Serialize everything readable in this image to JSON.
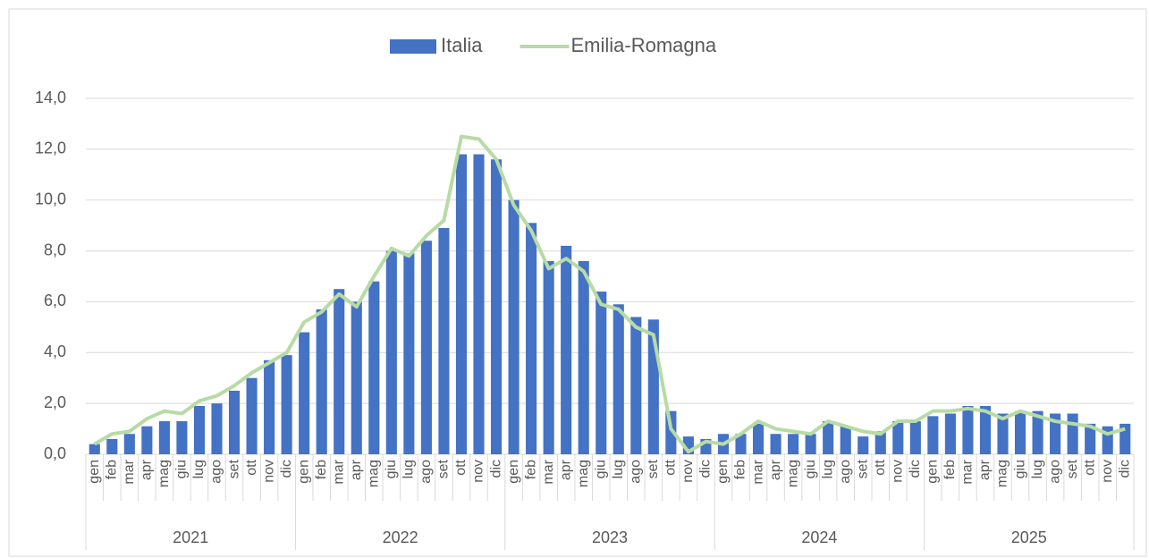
{
  "chart_data": {
    "type": "bar",
    "categories": [
      "gen",
      "feb",
      "mar",
      "apr",
      "mag",
      "giu",
      "lug",
      "ago",
      "set",
      "ott",
      "nov",
      "dic",
      "gen",
      "feb",
      "mar",
      "apr",
      "mag",
      "giu",
      "lug",
      "ago",
      "set",
      "ott",
      "nov",
      "dic",
      "gen",
      "feb",
      "mar",
      "apr",
      "mag",
      "giu",
      "lug",
      "ago",
      "set",
      "ott",
      "nov",
      "dic",
      "gen",
      "feb",
      "mar",
      "apr",
      "mag",
      "giu",
      "lug",
      "ago",
      "set",
      "ott",
      "nov",
      "dic",
      "gen",
      "feb",
      "mar",
      "apr",
      "mag",
      "giu",
      "lug",
      "ago",
      "set",
      "ott",
      "nov",
      "dic"
    ],
    "x_groups": [
      "2021",
      "2022",
      "2023",
      "2024",
      "2025"
    ],
    "series": [
      {
        "name": "Italia",
        "type": "bar",
        "color": "#4472c4",
        "values": [
          0.4,
          0.6,
          0.8,
          1.1,
          1.3,
          1.3,
          1.9,
          2.0,
          2.5,
          3.0,
          3.7,
          3.9,
          4.8,
          5.7,
          6.5,
          6.0,
          6.8,
          8.0,
          7.9,
          8.4,
          8.9,
          11.8,
          11.8,
          11.6,
          10.0,
          9.1,
          7.6,
          8.2,
          7.6,
          6.4,
          5.9,
          5.4,
          5.3,
          1.7,
          0.7,
          0.6,
          0.8,
          0.8,
          1.2,
          0.8,
          0.8,
          0.8,
          1.3,
          1.1,
          0.7,
          0.9,
          1.3,
          1.3,
          1.5,
          1.6,
          1.9,
          1.9,
          1.6,
          1.7,
          1.7,
          1.6,
          1.6,
          1.2,
          1.1,
          1.2
        ]
      },
      {
        "name": "Emilia-Romagna",
        "type": "line",
        "color": "#b8dba5",
        "values": [
          0.4,
          0.8,
          0.9,
          1.4,
          1.7,
          1.6,
          2.1,
          2.3,
          2.7,
          3.2,
          3.6,
          4.0,
          5.2,
          5.6,
          6.3,
          5.8,
          7.0,
          8.1,
          7.8,
          8.6,
          9.2,
          12.5,
          12.4,
          11.6,
          9.8,
          8.8,
          7.3,
          7.7,
          7.2,
          5.9,
          5.7,
          5.0,
          4.7,
          1.0,
          0.1,
          0.5,
          0.4,
          0.8,
          1.3,
          1.0,
          0.9,
          0.8,
          1.3,
          1.1,
          0.9,
          0.8,
          1.3,
          1.3,
          1.7,
          1.7,
          1.8,
          1.7,
          1.4,
          1.7,
          1.5,
          1.3,
          1.2,
          1.1,
          0.8,
          1.0
        ]
      }
    ],
    "ylim": [
      0,
      14
    ],
    "yticks": [
      {
        "value": 0,
        "label": "0,0"
      },
      {
        "value": 2,
        "label": "2,0"
      },
      {
        "value": 4,
        "label": "4,0"
      },
      {
        "value": 6,
        "label": "6,0"
      },
      {
        "value": 8,
        "label": "8,0"
      },
      {
        "value": 10,
        "label": "10,0"
      },
      {
        "value": 12,
        "label": "12,0"
      },
      {
        "value": 14,
        "label": "14,0"
      }
    ],
    "grid": true,
    "legend": "top"
  }
}
